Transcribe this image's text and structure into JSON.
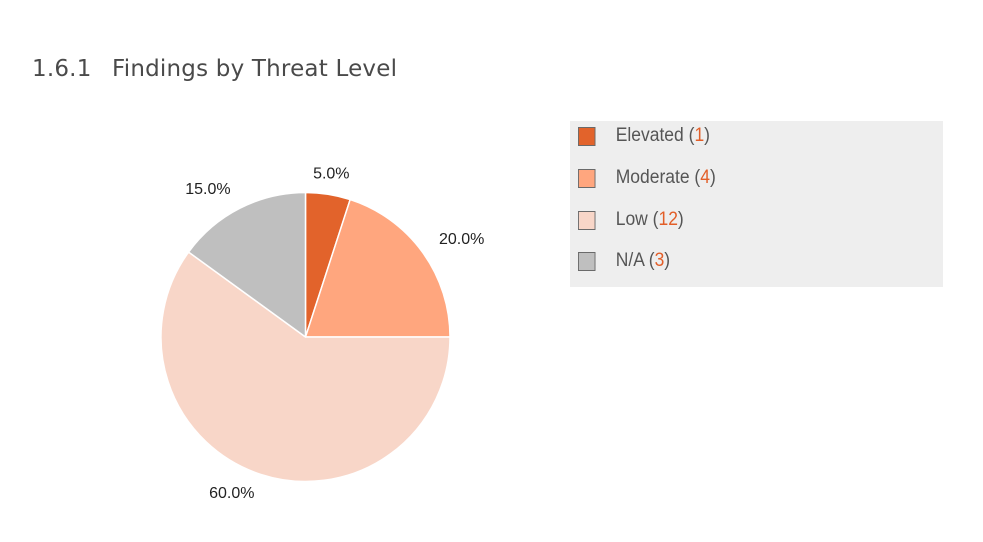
{
  "heading": {
    "number": "1.6.1",
    "title": "Findings by Threat Level"
  },
  "chart_data": {
    "type": "pie",
    "categories": [
      "Elevated",
      "Moderate",
      "Low",
      "N/A"
    ],
    "values": [
      1,
      4,
      12,
      3
    ],
    "percent_labels": [
      "5.0%",
      "20.0%",
      "60.0%",
      "15.0%"
    ],
    "colors": [
      "#e2632b",
      "#ffa67e",
      "#f8d6c8",
      "#bfbfbf"
    ],
    "direction": "clockwise",
    "start_angle_deg": 0,
    "legend_position": "right",
    "legend_items": [
      {
        "label": "Elevated",
        "count": "1",
        "color": "#e2632b"
      },
      {
        "label": "Moderate",
        "count": "4",
        "color": "#ffa67e"
      },
      {
        "label": "Low",
        "count": "12",
        "color": "#f8d6c8"
      },
      {
        "label": "N/A",
        "count": "3",
        "color": "#bfbfbf"
      }
    ],
    "count_color": "#e25e28"
  }
}
